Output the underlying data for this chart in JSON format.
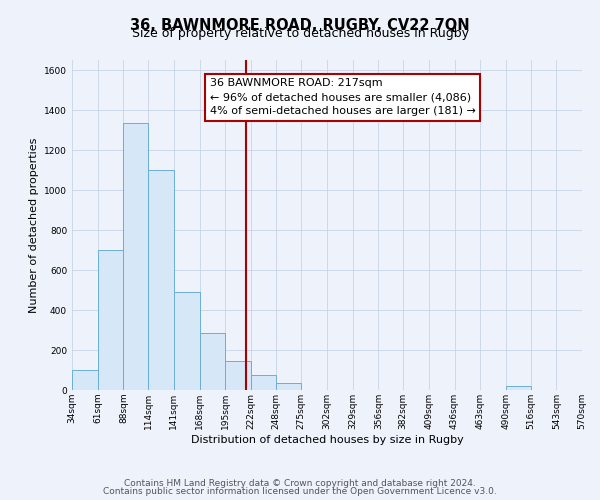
{
  "title": "36, BAWNMORE ROAD, RUGBY, CV22 7QN",
  "subtitle": "Size of property relative to detached houses in Rugby",
  "xlabel": "Distribution of detached houses by size in Rugby",
  "ylabel": "Number of detached properties",
  "footer_lines": [
    "Contains HM Land Registry data © Crown copyright and database right 2024.",
    "Contains public sector information licensed under the Open Government Licence v3.0."
  ],
  "bar_edges": [
    34,
    61,
    88,
    114,
    141,
    168,
    195,
    222,
    248,
    275,
    302,
    329,
    356,
    382,
    409,
    436,
    463,
    490,
    516,
    543,
    570
  ],
  "bar_heights": [
    100,
    700,
    1335,
    1100,
    490,
    285,
    145,
    75,
    35,
    0,
    0,
    0,
    0,
    0,
    0,
    0,
    0,
    20,
    0,
    0
  ],
  "bar_color": "#d6e8f7",
  "bar_edge_color": "#6aaed6",
  "vline_x": 217,
  "vline_color": "#aa0000",
  "annotation_lines": [
    "36 BAWNMORE ROAD: 217sqm",
    "← 96% of detached houses are smaller (4,086)",
    "4% of semi-detached houses are larger (181) →"
  ],
  "ylim": [
    0,
    1650
  ],
  "yticks": [
    0,
    200,
    400,
    600,
    800,
    1000,
    1200,
    1400,
    1600
  ],
  "xtick_labels": [
    "34sqm",
    "61sqm",
    "88sqm",
    "114sqm",
    "141sqm",
    "168sqm",
    "195sqm",
    "222sqm",
    "248sqm",
    "275sqm",
    "302sqm",
    "329sqm",
    "356sqm",
    "382sqm",
    "409sqm",
    "436sqm",
    "463sqm",
    "490sqm",
    "516sqm",
    "543sqm",
    "570sqm"
  ],
  "background_color": "#edf2fb",
  "plot_bg_color": "#edf2fb",
  "grid_color": "#c8d4e8",
  "title_fontsize": 10.5,
  "subtitle_fontsize": 9,
  "axis_label_fontsize": 8,
  "tick_fontsize": 6.5,
  "annotation_fontsize": 8,
  "footer_fontsize": 6.5
}
